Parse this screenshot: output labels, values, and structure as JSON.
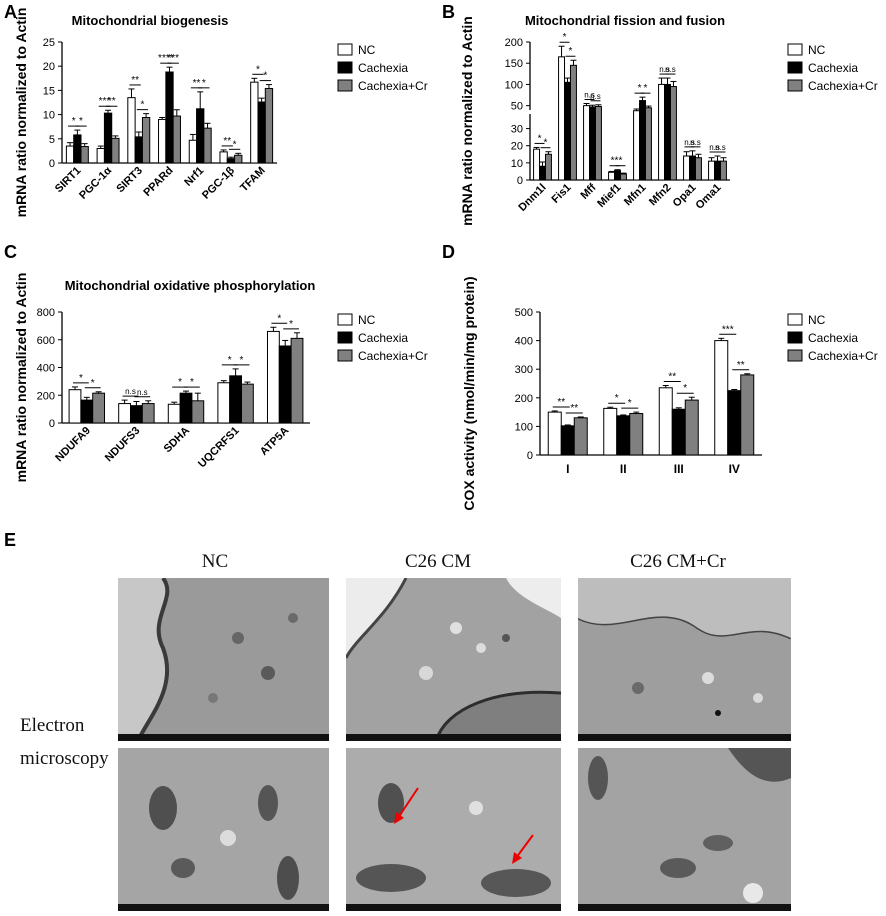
{
  "legend": [
    "NC",
    "Cachexia",
    "Cachexia+Cr"
  ],
  "colors": {
    "nc": "#ffffff",
    "cachexia": "#000000",
    "cachexia_cr": "#808080"
  },
  "chart_data": [
    {
      "panel": "A",
      "type": "bar",
      "title": "Mitochondrial biogenesis",
      "ylabel": "mRNA ratio normalized to Actin",
      "ylim": [
        0,
        25
      ],
      "yticks": [
        0,
        5,
        10,
        15,
        20,
        25
      ],
      "categories": [
        "SIRT1",
        "PGC-1α",
        "SIRT3",
        "PPARd",
        "Nrf1",
        "PGC-1β",
        "TFAM"
      ],
      "series": [
        {
          "name": "NC",
          "values": [
            3.5,
            3.0,
            13.5,
            9.0,
            4.7,
            2.3,
            16.7
          ],
          "errors": [
            0.7,
            0.5,
            1.8,
            0.4,
            1.2,
            0.4,
            0.8
          ]
        },
        {
          "name": "Cachexia",
          "values": [
            5.8,
            10.3,
            5.4,
            18.8,
            11.2,
            0.9,
            12.6
          ],
          "errors": [
            1.0,
            0.6,
            1.0,
            1.0,
            3.5,
            0.3,
            0.8
          ]
        },
        {
          "name": "Cachexia+Cr",
          "values": [
            3.4,
            5.1,
            9.4,
            9.7,
            7.2,
            1.6,
            15.4
          ],
          "errors": [
            0.6,
            0.5,
            0.8,
            1.3,
            1.0,
            0.4,
            0.8
          ]
        }
      ],
      "sig": [
        [
          "*",
          "*"
        ],
        [
          "***",
          "**"
        ],
        [
          "**",
          "*"
        ],
        [
          "****",
          "***"
        ],
        [
          "**",
          "*"
        ],
        [
          "**",
          "*"
        ],
        [
          "*",
          "*"
        ]
      ]
    },
    {
      "panel": "B",
      "type": "bar",
      "title": "Mitochondrial fission and fusion",
      "ylabel": "mRNA ratio normalized to Actin",
      "axis_break": true,
      "yticks_upper": [
        50,
        100,
        150,
        200
      ],
      "yticks_lower": [
        0,
        10,
        20,
        30
      ],
      "categories": [
        "Dnm1l",
        "Fis1",
        "Mff",
        "Mief1",
        "Mfn1",
        "Mfn2",
        "Opa1",
        "Oma1"
      ],
      "series": [
        {
          "name": "NC",
          "values": [
            18,
            165,
            50,
            4.5,
            38,
            100,
            14,
            11
          ],
          "errors": [
            1.0,
            25,
            5,
            0.5,
            4,
            15,
            2.5,
            2
          ]
        },
        {
          "name": "Cachexia",
          "values": [
            8,
            105,
            47,
            5.5,
            62,
            100,
            14,
            11
          ],
          "errors": [
            2.5,
            10,
            4,
            0.5,
            8,
            15,
            3,
            3
          ]
        },
        {
          "name": "Cachexia+Cr",
          "values": [
            15,
            145,
            48,
            3.5,
            45,
            95,
            13,
            11
          ],
          "errors": [
            1.5,
            12,
            4,
            0.5,
            4,
            12,
            2,
            2
          ]
        }
      ],
      "sig": [
        [
          "*",
          "*"
        ],
        [
          "*",
          "*"
        ],
        [
          "n.s",
          "n.s"
        ],
        [
          "**",
          "*"
        ],
        [
          "*",
          "*"
        ],
        [
          "n.s",
          "n.s"
        ],
        [
          "n.s",
          "n.s"
        ],
        [
          "n.s",
          "n.s"
        ]
      ]
    },
    {
      "panel": "C",
      "type": "bar",
      "title": "Mitochondrial oxidative phosphorylation",
      "ylabel": "mRNA ratio normalized to Actin",
      "ylim": [
        0,
        800
      ],
      "yticks": [
        0,
        200,
        400,
        600,
        800
      ],
      "categories": [
        "NDUFA9",
        "NDUFS3",
        "SDHA",
        "UQCRFS1",
        "ATP5A"
      ],
      "series": [
        {
          "name": "NC",
          "values": [
            240,
            140,
            135,
            290,
            660
          ],
          "errors": [
            20,
            25,
            15,
            15,
            30
          ]
        },
        {
          "name": "Cachexia",
          "values": [
            165,
            125,
            215,
            340,
            555
          ],
          "errors": [
            20,
            30,
            15,
            50,
            40
          ]
        },
        {
          "name": "Cachexia+Cr",
          "values": [
            215,
            140,
            160,
            280,
            610
          ],
          "errors": [
            10,
            20,
            55,
            15,
            40
          ]
        }
      ],
      "sig": [
        [
          "*",
          "*"
        ],
        [
          "n.s",
          "n.s"
        ],
        [
          "*",
          "*"
        ],
        [
          "*",
          "*"
        ],
        [
          "*",
          "*"
        ]
      ]
    },
    {
      "panel": "D",
      "type": "bar",
      "title": "",
      "ylabel": "COX activity (nmol/min/mg protein)",
      "ylim": [
        0,
        500
      ],
      "yticks": [
        0,
        100,
        200,
        300,
        400,
        500
      ],
      "categories": [
        "I",
        "II",
        "III",
        "IV"
      ],
      "series": [
        {
          "name": "NC",
          "values": [
            150,
            163,
            235,
            400
          ],
          "errors": [
            4,
            4,
            8,
            8
          ]
        },
        {
          "name": "Cachexia",
          "values": [
            102,
            137,
            160,
            225
          ],
          "errors": [
            3,
            3,
            5,
            4
          ]
        },
        {
          "name": "Cachexia+Cr",
          "values": [
            130,
            145,
            192,
            280
          ],
          "errors": [
            3,
            5,
            10,
            4
          ]
        }
      ],
      "sig": [
        [
          "**",
          "**"
        ],
        [
          "*",
          "*"
        ],
        [
          "**",
          "*"
        ],
        [
          "***",
          "**"
        ]
      ]
    }
  ],
  "panel_e": {
    "letter": "E",
    "columns": [
      "NC",
      "C26 CM",
      "C26 CM+Cr"
    ],
    "row_label_1": "Electron",
    "row_label_2": "microscopy"
  }
}
